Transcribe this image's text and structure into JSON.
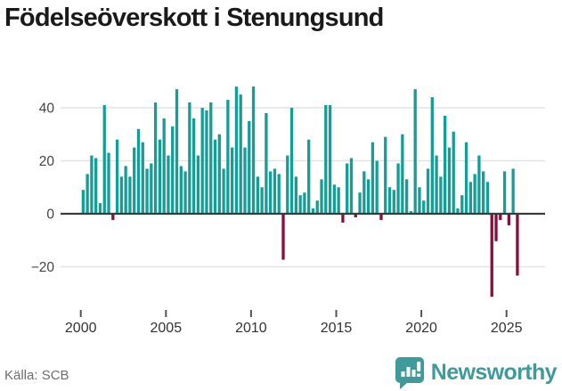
{
  "header": {
    "title": "Födelseöverskott i Stenungsund"
  },
  "footer": {
    "source": "Källa: SCB",
    "brand": "Newsworthy"
  },
  "colors": {
    "positive": "#149e96",
    "negative": "#8e0c3b",
    "grid": "#e4e4e4",
    "zero_axis": "#3a3a3a",
    "tick": "#555555",
    "axis_text": "#444444",
    "brand_teal": "#3d9b9b"
  },
  "chart_data": {
    "type": "bar",
    "title": "Födelseöverskott i Stenungsund",
    "frequency": "quarterly",
    "xlabel": "",
    "ylabel": "",
    "ylim": [
      -35,
      50
    ],
    "yticks": [
      40,
      20,
      0,
      -20
    ],
    "y_tick_labels": [
      "40",
      "20",
      "0",
      "−20"
    ],
    "x_tick_years": [
      2000,
      2005,
      2010,
      2015,
      2020,
      2025
    ],
    "x_tick_labels": [
      "2000",
      "2005",
      "2010",
      "2015",
      "2020",
      "2025"
    ],
    "grid": true,
    "legend": "none",
    "years": [
      {
        "year": 2000,
        "quarters": [
          9,
          15,
          22,
          21
        ]
      },
      {
        "year": 2001,
        "quarters": [
          4,
          41,
          23,
          -2
        ]
      },
      {
        "year": 2002,
        "quarters": [
          28,
          14,
          18,
          14
        ]
      },
      {
        "year": 2003,
        "quarters": [
          25,
          32,
          27,
          17
        ]
      },
      {
        "year": 2004,
        "quarters": [
          19,
          42,
          28,
          36
        ]
      },
      {
        "year": 2005,
        "quarters": [
          22,
          33,
          47,
          18
        ]
      },
      {
        "year": 2006,
        "quarters": [
          16,
          42,
          36,
          22
        ]
      },
      {
        "year": 2007,
        "quarters": [
          40,
          39,
          42,
          28
        ]
      },
      {
        "year": 2008,
        "quarters": [
          30,
          17,
          43,
          25
        ]
      },
      {
        "year": 2009,
        "quarters": [
          48,
          45,
          25,
          35
        ]
      },
      {
        "year": 2010,
        "quarters": [
          48,
          14,
          10,
          38
        ]
      },
      {
        "year": 2011,
        "quarters": [
          16,
          17,
          15,
          -17
        ]
      },
      {
        "year": 2012,
        "quarters": [
          22,
          40,
          14,
          7
        ]
      },
      {
        "year": 2013,
        "quarters": [
          8,
          28,
          2,
          5
        ]
      },
      {
        "year": 2014,
        "quarters": [
          13,
          41,
          41,
          11
        ]
      },
      {
        "year": 2015,
        "quarters": [
          10,
          -3,
          19,
          21
        ]
      },
      {
        "year": 2016,
        "quarters": [
          -1,
          8,
          16,
          13
        ]
      },
      {
        "year": 2017,
        "quarters": [
          27,
          20,
          -2,
          29
        ]
      },
      {
        "year": 2018,
        "quarters": [
          10,
          9,
          19,
          30
        ]
      },
      {
        "year": 2019,
        "quarters": [
          13,
          1,
          47,
          10
        ]
      },
      {
        "year": 2020,
        "quarters": [
          5,
          17,
          44,
          22
        ]
      },
      {
        "year": 2021,
        "quarters": [
          14,
          37,
          25,
          31
        ]
      },
      {
        "year": 2022,
        "quarters": [
          2,
          7,
          27,
          12
        ]
      },
      {
        "year": 2023,
        "quarters": [
          15,
          22,
          16,
          12
        ]
      },
      {
        "year": 2024,
        "quarters": [
          -31,
          -10,
          -2,
          16
        ]
      },
      {
        "year": 2025,
        "quarters": [
          -4,
          17,
          -23
        ]
      }
    ]
  }
}
